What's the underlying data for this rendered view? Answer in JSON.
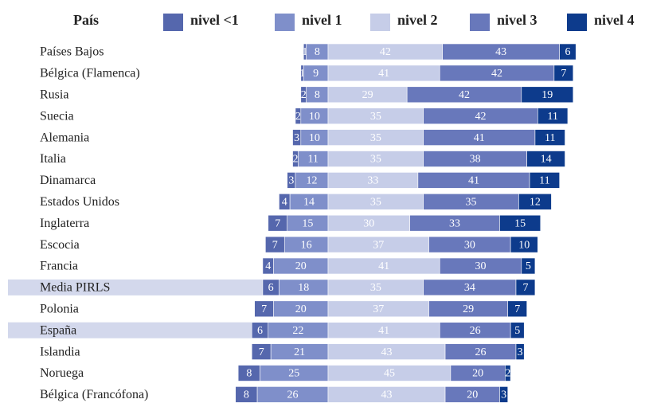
{
  "chart_data": {
    "type": "diverging_bar",
    "row_header": "País",
    "categories": [
      "Países Bajos",
      "Bélgica (Flamenca)",
      "Rusia",
      "Suecia",
      "Alemania",
      "Italia",
      "Dinamarca",
      "Estados Unidos",
      "Inglaterra",
      "Escocia",
      "Francia",
      "Media PIRLS",
      "Polonia",
      "España",
      "Islandia",
      "Noruega",
      "Bélgica (Francófona)"
    ],
    "series": [
      {
        "name": "nivel <1",
        "color": "#5567ad",
        "values": [
          1,
          1,
          2,
          2,
          3,
          2,
          3,
          4,
          7,
          7,
          4,
          6,
          7,
          6,
          7,
          8,
          8
        ]
      },
      {
        "name": "nivel 1",
        "color": "#7f8fca",
        "values": [
          8,
          9,
          8,
          10,
          10,
          11,
          12,
          14,
          15,
          16,
          20,
          18,
          20,
          22,
          21,
          25,
          26
        ]
      },
      {
        "name": "nivel 2",
        "color": "#c6cde8",
        "values": [
          42,
          41,
          29,
          35,
          35,
          35,
          33,
          35,
          30,
          37,
          41,
          35,
          37,
          41,
          43,
          45,
          43
        ]
      },
      {
        "name": "nivel 3",
        "color": "#6878bb",
        "values": [
          43,
          42,
          42,
          42,
          41,
          38,
          41,
          35,
          33,
          30,
          30,
          34,
          29,
          26,
          26,
          20,
          20
        ]
      },
      {
        "name": "nivel 4",
        "color": "#0d3b8c",
        "values": [
          6,
          7,
          19,
          11,
          11,
          14,
          11,
          12,
          15,
          10,
          5,
          7,
          7,
          5,
          3,
          2,
          3
        ]
      }
    ],
    "diverge_before_series": 2,
    "highlighted_rows": [
      11,
      13
    ],
    "highlight_color": "#d3d8ec"
  }
}
